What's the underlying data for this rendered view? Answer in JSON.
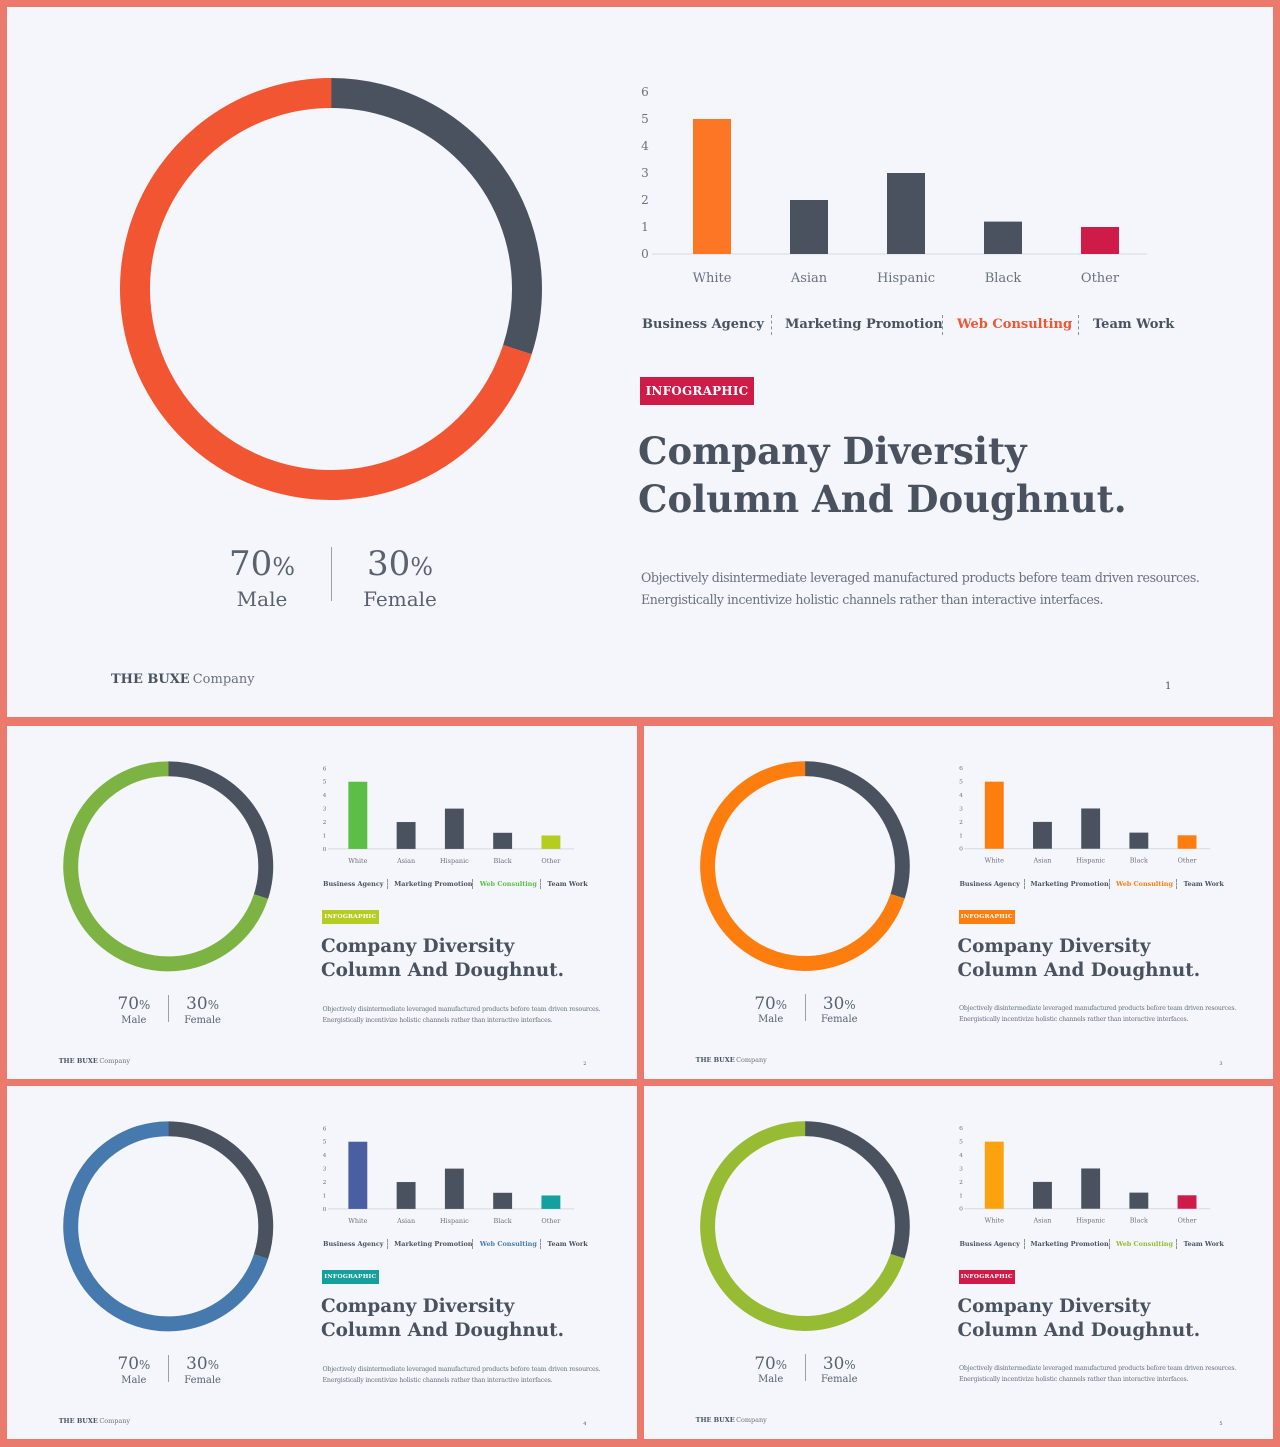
{
  "slides": [
    {
      "page": "1",
      "colors": {
        "main": "#f15532",
        "first_bar": "#fd7626",
        "last_bar": "#cf1b48",
        "tag": "#cf1b48",
        "menu_active": "#f15532"
      }
    },
    {
      "page": "2",
      "colors": {
        "main": "#7cb342",
        "first_bar": "#5bbf46",
        "last_bar": "#b5cd20",
        "tag": "#b5cd20",
        "menu_active": "#5bbf46"
      }
    },
    {
      "page": "3",
      "colors": {
        "main": "#fd7e0f",
        "first_bar": "#fd7e0f",
        "last_bar": "#fd7e0f",
        "tag": "#fd7e0f",
        "menu_active": "#fd7e0f"
      }
    },
    {
      "page": "4",
      "colors": {
        "main": "#4679ad",
        "first_bar": "#4a5ea2",
        "last_bar": "#15a0a0",
        "tag": "#15a0a0",
        "menu_active": "#4a7ab0"
      }
    },
    {
      "page": "5",
      "colors": {
        "main": "#97bb33",
        "first_bar": "#fda20f",
        "last_bar": "#cf1b48",
        "tag": "#cf1b48",
        "menu_active": "#97bb33"
      }
    }
  ],
  "shared": {
    "menu": [
      "Business Agency",
      "Marketing Promotion",
      "Web Consulting",
      "Team Work"
    ],
    "tag": "INFOGRAPHIC",
    "title_line1": "Company Diversity",
    "title_line2": "Column And Doughnut.",
    "desc_line1": "Objectively disintermediate leveraged manufactured products before team  driven resources.",
    "desc_line2": "Energistically incentivize holistic channels rather than interactive interfaces.",
    "male_value": "70",
    "female_value": "30",
    "percent": "%",
    "male_label": "Male",
    "female_label": "Female",
    "brand_bold": "THE BUXE",
    "brand_rest": "Company",
    "neutral_color": "#4a5260"
  },
  "chart_data": [
    {
      "type": "bar",
      "categories": [
        "White",
        "Asian",
        "Hispanic",
        "Black",
        "Other"
      ],
      "values": [
        5,
        2,
        3,
        1.2,
        1
      ],
      "ylim": [
        0,
        6
      ],
      "yticks": [
        "0",
        "1",
        "2",
        "3",
        "4",
        "5",
        "6"
      ],
      "title": "",
      "xlabel": "",
      "ylabel": ""
    },
    {
      "type": "pie",
      "donut": true,
      "labels": [
        "Male",
        "Female"
      ],
      "values": [
        70,
        30
      ]
    }
  ]
}
